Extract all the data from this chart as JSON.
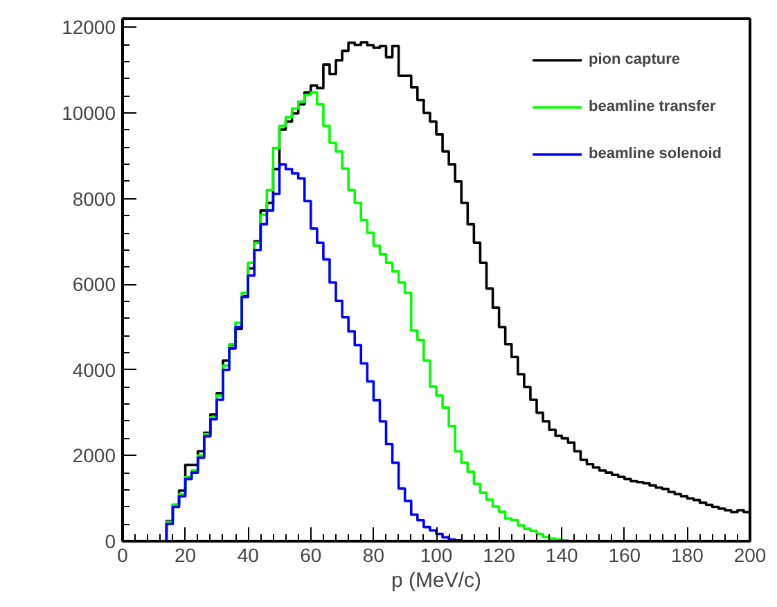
{
  "chart_data": {
    "type": "histogram",
    "xlabel": "p (MeV/c)",
    "bins": [
      0,
      2,
      4,
      6,
      8,
      10,
      12,
      14,
      16,
      18,
      20,
      22,
      24,
      26,
      28,
      30,
      32,
      34,
      36,
      38,
      40,
      42,
      44,
      46,
      48,
      50,
      52,
      54,
      56,
      58,
      60,
      62,
      64,
      66,
      68,
      70,
      72,
      74,
      76,
      78,
      80,
      82,
      84,
      86,
      88,
      90,
      92,
      94,
      96,
      98,
      100,
      102,
      104,
      106,
      108,
      110,
      112,
      114,
      116,
      118,
      120,
      122,
      124,
      126,
      128,
      130,
      132,
      134,
      136,
      138,
      140,
      142,
      144,
      146,
      148,
      150,
      152,
      154,
      156,
      158,
      160,
      162,
      164,
      166,
      168,
      170,
      172,
      174,
      176,
      178,
      180,
      182,
      184,
      186,
      188,
      190,
      192,
      194,
      196,
      198,
      200
    ],
    "series": [
      {
        "name": "pion capture",
        "color": "#000000",
        "values": [
          0,
          0,
          0,
          0,
          0,
          0,
          0,
          470,
          850,
          1180,
          1780,
          1780,
          2100,
          2530,
          2960,
          3450,
          4220,
          4580,
          4960,
          5720,
          6370,
          7000,
          7720,
          7900,
          8690,
          9610,
          9800,
          9990,
          10200,
          10480,
          10640,
          10580,
          11130,
          10910,
          11230,
          11450,
          11640,
          11590,
          11650,
          11580,
          11520,
          11560,
          11300,
          11560,
          10870,
          10870,
          10600,
          10300,
          10000,
          9800,
          9500,
          9100,
          8800,
          8400,
          7900,
          7400,
          6970,
          6500,
          5900,
          5450,
          5000,
          4600,
          4300,
          3900,
          3600,
          3300,
          3000,
          2800,
          2600,
          2460,
          2400,
          2300,
          2100,
          1900,
          1800,
          1720,
          1650,
          1600,
          1550,
          1500,
          1450,
          1400,
          1380,
          1350,
          1300,
          1250,
          1220,
          1150,
          1100,
          1050,
          1000,
          960,
          900,
          850,
          800,
          760,
          720,
          680,
          720,
          680
        ]
      },
      {
        "name": "beamline transfer",
        "color": "#00ff00",
        "values": [
          0,
          0,
          0,
          0,
          0,
          0,
          0,
          450,
          850,
          1100,
          1500,
          1650,
          2000,
          2500,
          2900,
          3400,
          4100,
          4600,
          5100,
          5800,
          6500,
          6970,
          7620,
          8200,
          9180,
          9700,
          9900,
          10100,
          10260,
          10420,
          10480,
          10200,
          9700,
          9300,
          9100,
          8700,
          8200,
          7900,
          7500,
          7200,
          6900,
          6700,
          6500,
          6300,
          6040,
          5800,
          4920,
          4700,
          4220,
          3610,
          3400,
          3120,
          2690,
          2100,
          1830,
          1620,
          1340,
          1130,
          970,
          810,
          690,
          530,
          490,
          370,
          290,
          240,
          170,
          100,
          60,
          40,
          20,
          0,
          0,
          0,
          0,
          0,
          0,
          0,
          0,
          0,
          0,
          0,
          0,
          0,
          0,
          0,
          0,
          0,
          0,
          0,
          0,
          0,
          0,
          0,
          0,
          0,
          0,
          0,
          0,
          0
        ]
      },
      {
        "name": "beamline solenoid",
        "color": "#0000ff",
        "values": [
          0,
          0,
          0,
          0,
          0,
          0,
          0,
          400,
          800,
          1050,
          1450,
          1600,
          1950,
          2450,
          2850,
          3300,
          4000,
          4500,
          5000,
          5700,
          6200,
          6800,
          7400,
          7720,
          8110,
          8800,
          8690,
          8590,
          8470,
          7940,
          7300,
          6970,
          6580,
          6040,
          5610,
          5230,
          4900,
          4580,
          4150,
          3730,
          3290,
          2800,
          2270,
          1830,
          1230,
          940,
          620,
          490,
          330,
          250,
          170,
          90,
          40,
          20,
          0,
          0,
          0,
          0,
          0,
          0,
          0,
          0,
          0,
          0,
          0,
          0,
          0,
          0,
          0,
          0,
          0,
          0,
          0,
          0,
          0,
          0,
          0,
          0,
          0,
          0,
          0,
          0,
          0,
          0,
          0,
          0,
          0,
          0,
          0,
          0,
          0,
          0,
          0,
          0,
          0,
          0,
          0,
          0,
          0,
          0
        ]
      }
    ],
    "xlim": [
      0,
      200
    ],
    "xticks": [
      0,
      20,
      40,
      60,
      80,
      100,
      120,
      140,
      160,
      180,
      200
    ],
    "ylim": [
      0,
      12200
    ],
    "yticks": [
      0,
      2000,
      4000,
      6000,
      8000,
      10000,
      12000
    ],
    "legend": "top right",
    "grid": false
  }
}
